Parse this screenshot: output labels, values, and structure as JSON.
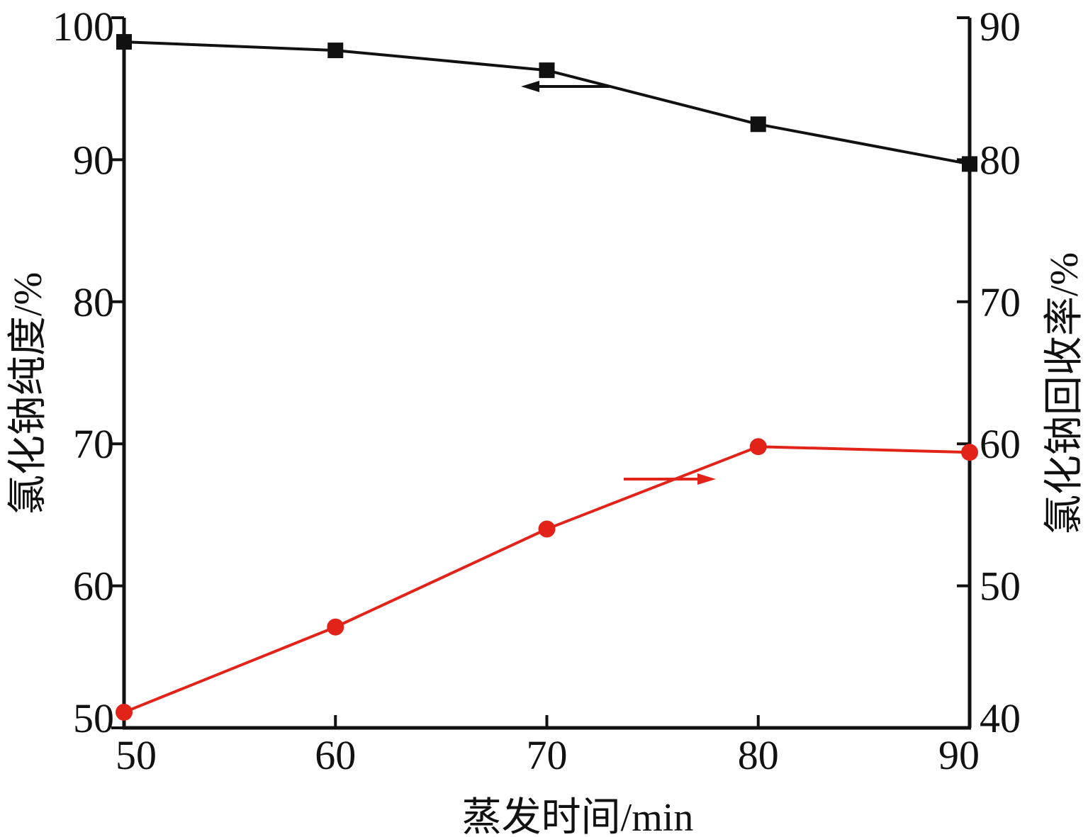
{
  "chart_data": {
    "type": "line",
    "xlabel": "蒸发时间/min",
    "ylabel_left": "氯化钠纯度/%",
    "ylabel_right": "氯化钠回收率/%",
    "x": [
      50,
      60,
      70,
      80,
      90
    ],
    "xlim": [
      50,
      90
    ],
    "xticks": [
      "50",
      "60",
      "70",
      "80",
      "90"
    ],
    "ylim_left": [
      50,
      100
    ],
    "yticks_left": [
      "50",
      "60",
      "70",
      "80",
      "90",
      "100"
    ],
    "ylim_right": [
      40,
      90
    ],
    "yticks_right": [
      "40",
      "50",
      "60",
      "70",
      "80",
      "90"
    ],
    "grid": false,
    "series": [
      {
        "axis": "left",
        "color": "#111111",
        "marker": "square",
        "arrow": "left",
        "values": [
          98.3,
          97.7,
          96.3,
          92.5,
          89.7
        ]
      },
      {
        "axis": "right",
        "color": "#e2231a",
        "marker": "circle",
        "arrow": "right",
        "values": [
          41.1,
          47.1,
          54.0,
          59.8,
          59.4
        ]
      }
    ]
  }
}
